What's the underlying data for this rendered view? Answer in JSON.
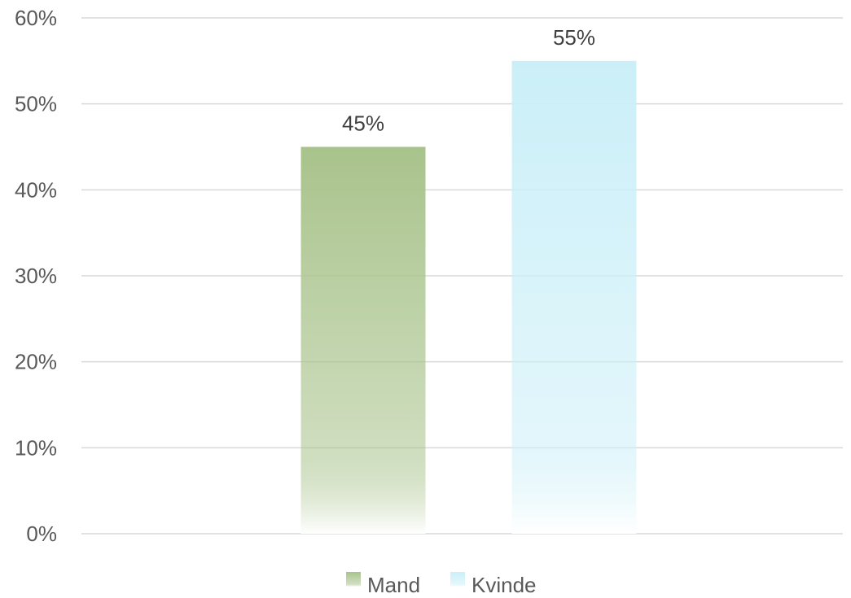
{
  "chart_data": {
    "type": "bar",
    "title": "",
    "xlabel": "",
    "ylabel": "",
    "categories": [
      ""
    ],
    "series": [
      {
        "name": "Mand",
        "values": [
          0.45
        ],
        "label": "45%",
        "color": "#a9c38c",
        "color_fade": "#ffffff"
      },
      {
        "name": "Kvinde",
        "values": [
          0.55
        ],
        "label": "55%",
        "color": "#cbeff8",
        "color_fade": "#ffffff"
      }
    ],
    "ylim": [
      0,
      0.6
    ],
    "y_ticks": [
      {
        "value": 0.0,
        "label": "0%"
      },
      {
        "value": 0.1,
        "label": "10%"
      },
      {
        "value": 0.2,
        "label": "20%"
      },
      {
        "value": 0.3,
        "label": "30%"
      },
      {
        "value": 0.4,
        "label": "40%"
      },
      {
        "value": 0.5,
        "label": "50%"
      },
      {
        "value": 0.6,
        "label": "60%"
      }
    ],
    "grid": true,
    "legend_position": "bottom"
  }
}
